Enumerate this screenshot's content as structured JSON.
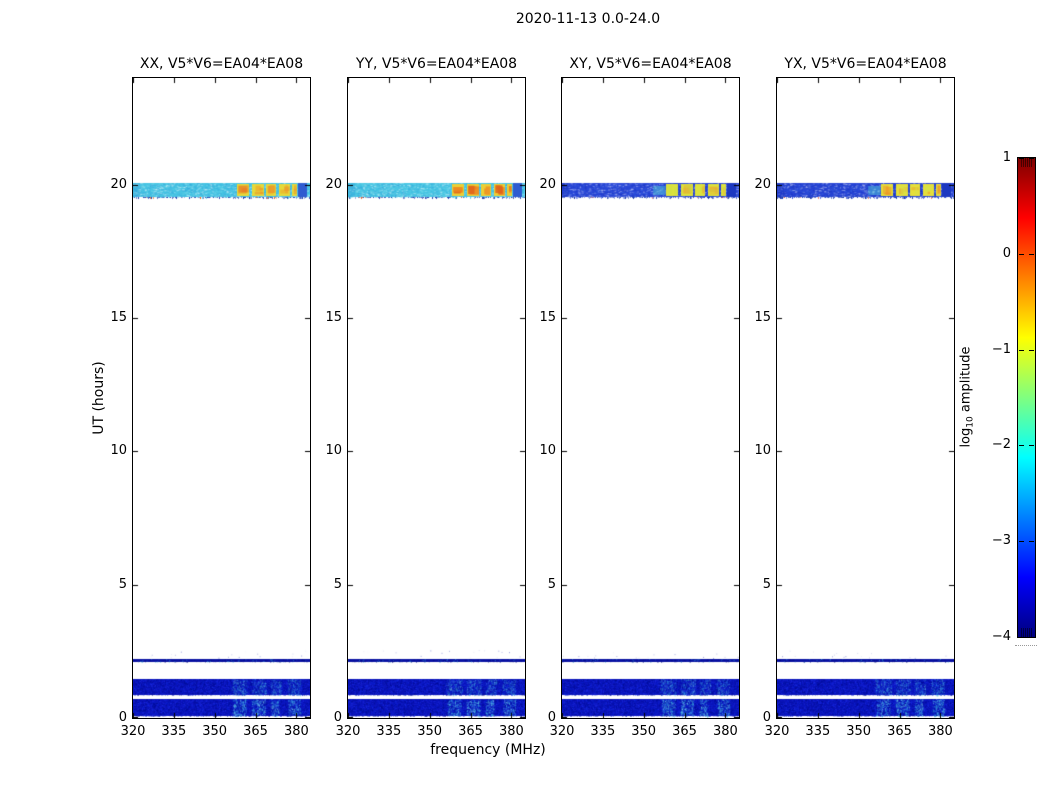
{
  "figure": {
    "background": "#ffffff",
    "border_color": "#000000"
  },
  "chart_data": {
    "type": "heatmap",
    "title": "2020-11-13 0.0-24.0",
    "xlabel": "frequency (MHz)",
    "ylabel": "UT (hours)",
    "xlim": [
      320,
      385
    ],
    "ylim": [
      0,
      24
    ],
    "xticks": [
      320,
      335,
      350,
      365,
      380
    ],
    "yticks": [
      0,
      5,
      10,
      15,
      20
    ],
    "grid": false,
    "tick_direction": "in",
    "colorbar": {
      "label": "log10 amplitude",
      "label_parts": {
        "prefix": "log",
        "sub": "10",
        "suffix": " amplitude"
      },
      "ticks": [
        1,
        0,
        -1,
        -2,
        -3,
        -4
      ],
      "lim": [
        -4,
        1
      ],
      "colormap": "jet",
      "gradient_top_to_bottom": [
        "#7f0000",
        "#ff0000",
        "#ffff00",
        "#00ffff",
        "#0000ff",
        "#00007f"
      ],
      "gradient_stops_pct": [
        0,
        12.5,
        37.5,
        62.5,
        87.5,
        100
      ]
    },
    "panels": [
      {
        "id": "XX",
        "title": "XX, V5*V6=EA04*EA08",
        "scan_base": "#46c4e4",
        "scan_noise_dark": "#2f9fd8",
        "scan_noise_light": "#6fdcea",
        "scan_dark_right": "#2e5bd0",
        "block_fill": "#e6d93a",
        "block_patches": [
          "#f09a28",
          "#e86f24"
        ],
        "patch_strength": 0.55,
        "underline_accent": "#e86820",
        "preblock_glow": false,
        "seed": 11
      },
      {
        "id": "YY",
        "title": "YY, V5*V6=EA04*EA08",
        "scan_base": "#48c6e4",
        "scan_noise_dark": "#2f9fd8",
        "scan_noise_light": "#6fdcea",
        "scan_dark_right": "#2e5bd0",
        "block_fill": "#eccf34",
        "block_patches": [
          "#ec8421",
          "#e0611b"
        ],
        "patch_strength": 0.85,
        "underline_accent": "#e05018",
        "preblock_glow": false,
        "seed": 22
      },
      {
        "id": "XY",
        "title": "XY, V5*V6=EA04*EA08",
        "scan_base": "#2946d8",
        "scan_noise_dark": "#1730b8",
        "scan_noise_light": "#3e6ae4",
        "scan_dark_right": "#1c38c0",
        "block_fill": "#dce23d",
        "block_patches": [
          "#bfe04a",
          "#ec9c2e"
        ],
        "patch_strength": 0.45,
        "underline_accent": "#d83020",
        "preblock_glow": true,
        "seed": 33
      },
      {
        "id": "YX",
        "title": "YX, V5*V6=EA04*EA08",
        "scan_base": "#2744d6",
        "scan_noise_dark": "#1730b8",
        "scan_noise_light": "#3e6ae4",
        "scan_dark_right": "#1c38c0",
        "block_fill": "#e5df3b",
        "block_patches": [
          "#d6e348",
          "#ee8f26"
        ],
        "patch_strength": 0.6,
        "underline_accent": "#e03818",
        "preblock_glow": true,
        "seed": 44
      }
    ],
    "features": {
      "scan_band": {
        "ut": [
          19.55,
          20.05
        ],
        "approx_log10_amp_parallel": -2.1,
        "approx_log10_amp_cross": -3.0,
        "blocks_mhz": [
          [
            358.3,
            362.7
          ],
          [
            363.7,
            368.1
          ],
          [
            369.0,
            372.6
          ],
          [
            373.7,
            377.7
          ],
          [
            378.5,
            380.4
          ]
        ],
        "approx_log10_amp_blocks": -0.8,
        "dark_right_mhz": [
          380.6,
          383.8
        ],
        "underline_ut": [
          19.45,
          19.55
        ]
      },
      "rfi_line": {
        "ut": [
          2.1,
          2.22
        ],
        "approx_log10_amp": -3.7
      },
      "bottom_bands": [
        {
          "ut": [
            0.85,
            1.45
          ],
          "approx_log10_amp": -3.5,
          "streaks_mhz": [
            [
              356,
              362
            ],
            [
              363.5,
              369
            ],
            [
              370.5,
              374.5
            ],
            [
              376.5,
              381.5
            ]
          ],
          "streak_alpha": 0.4,
          "approx_log10_amp_streaks": -2.6
        },
        {
          "ut": [
            0.08,
            0.72
          ],
          "approx_log10_amp": -3.5,
          "streaks_mhz": [
            [
              356.5,
              361.5
            ],
            [
              363.5,
              368.5
            ],
            [
              370.5,
              373.5
            ],
            [
              377,
              381.5
            ]
          ],
          "streak_alpha": 0.65,
          "approx_log10_amp_streaks": -2.3
        }
      ]
    }
  }
}
